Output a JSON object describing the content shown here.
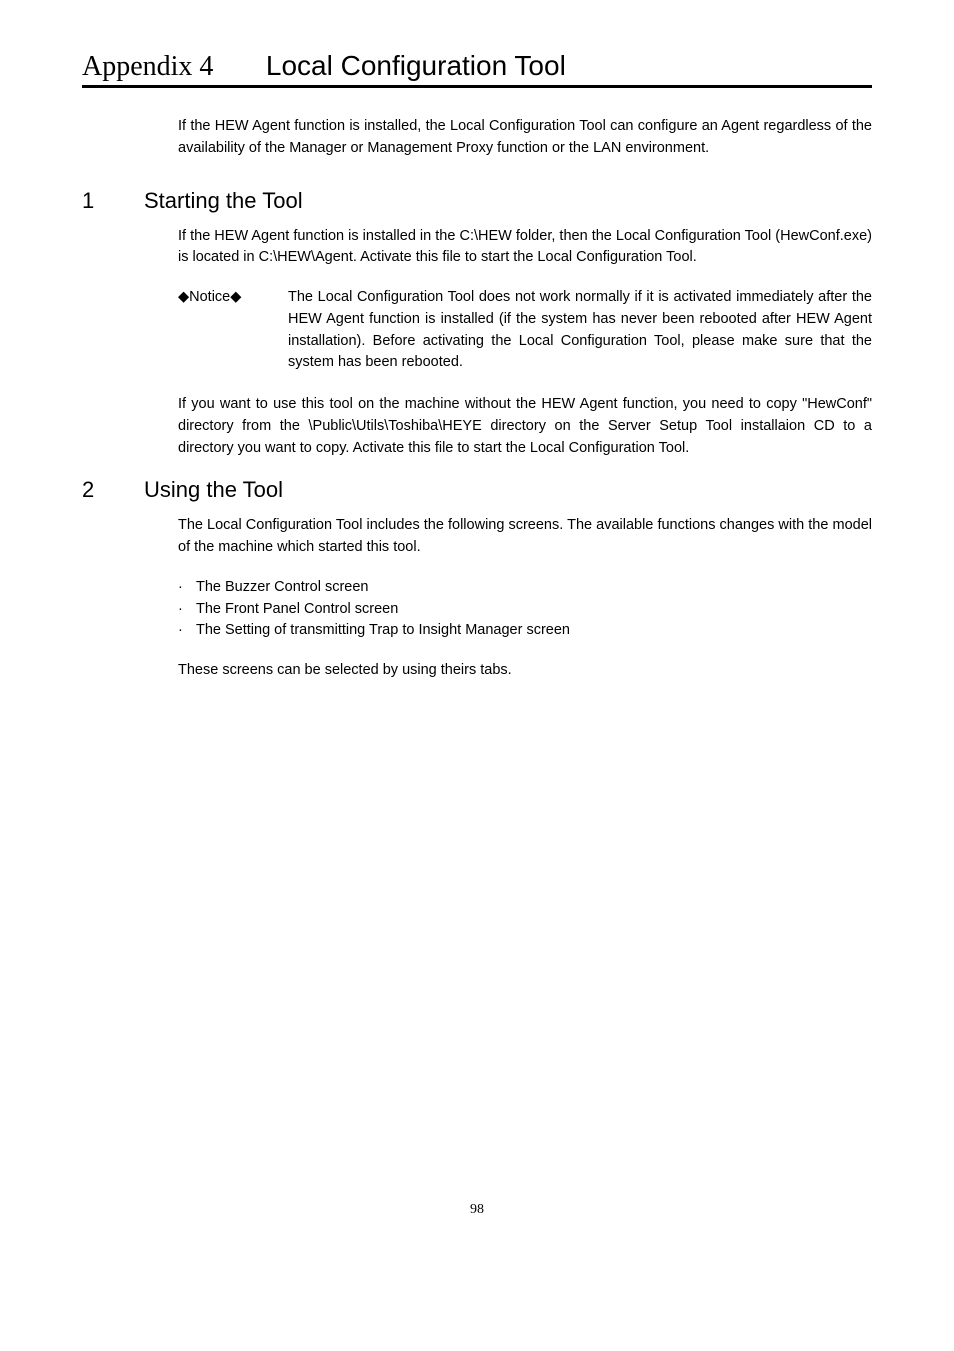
{
  "title": {
    "appendix": "Appendix 4",
    "main": "Local Configuration Tool"
  },
  "intro": "If the HEW Agent function is installed, the Local Configuration Tool can configure an Agent regardless of the availability of the Manager or Management Proxy function or the LAN environment.",
  "section1": {
    "number": "1",
    "heading": "Starting the Tool",
    "para1": "If the HEW Agent function is installed in the C:\\HEW folder, then the Local Configuration Tool (HewConf.exe) is located in C:\\HEW\\Agent.    Activate this file to start the Local Configuration Tool.",
    "notice": {
      "label": "◆Notice◆",
      "text": "The Local Configuration Tool does not work normally if it is activated immediately after the HEW Agent function is installed (if the system has never been rebooted after HEW Agent installation).   Before activating the Local Configuration Tool, please make sure that the system has been rebooted."
    },
    "para2": "If you want to use this tool on the machine without the HEW Agent function, you need to copy \"HewConf\" directory from the \\Public\\Utils\\Toshiba\\HEYE directory on the Server Setup Tool installaion CD to a directory you want to copy. Activate this file to start the Local Configuration Tool."
  },
  "section2": {
    "number": "2",
    "heading": "Using the Tool",
    "para1": "The Local Configuration Tool includes the following screens.   The available functions changes with the model of the machine which started this tool.",
    "bullets": [
      "The Buzzer Control screen",
      "The Front Panel Control screen",
      "The Setting of transmitting Trap to Insight Manager screen"
    ],
    "para2": "These screens can be selected by using theirs tabs."
  },
  "pageNumber": "98"
}
